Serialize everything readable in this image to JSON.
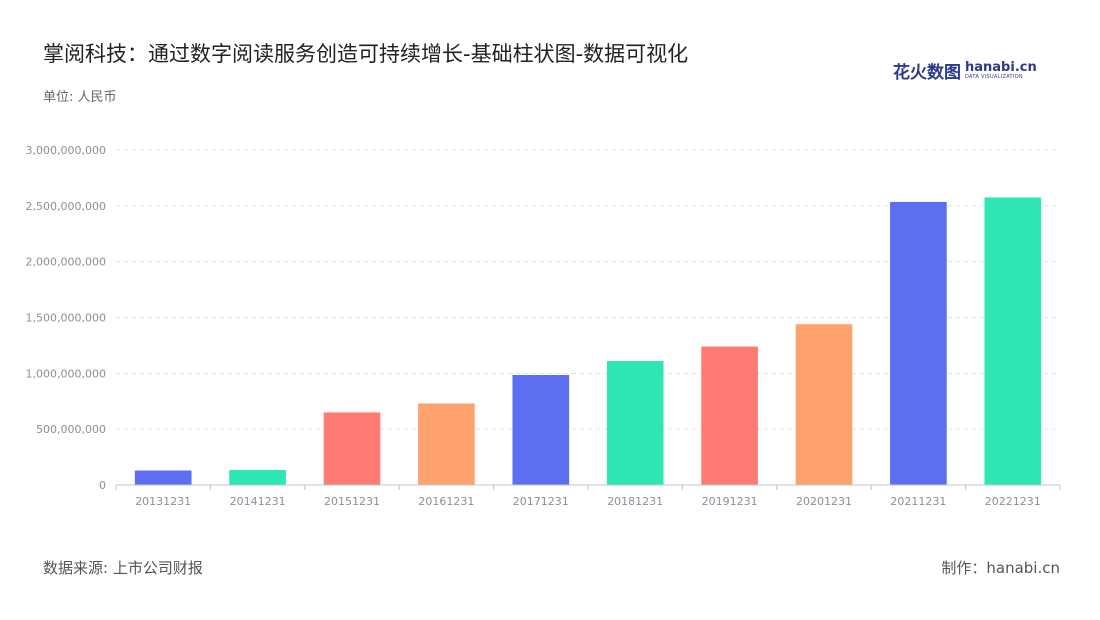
{
  "header": {
    "title": "掌阅科技：通过数字阅读服务创造可持续增长-基础柱状图-数据可视化",
    "unit": "单位: 人民币"
  },
  "logo": {
    "cn": "花火数图",
    "en": "hanabi.cn",
    "sub": "DATA VISUALIZATION"
  },
  "footer": {
    "source": "数据来源: 上市公司财报",
    "credit": "制作：hanabi.cn"
  },
  "chart_data": {
    "type": "bar",
    "categories": [
      "20131231",
      "20141231",
      "20151231",
      "20161231",
      "20171231",
      "20181231",
      "20191231",
      "20201231",
      "20211231",
      "20221231"
    ],
    "values": [
      130000000,
      135000000,
      650000000,
      730000000,
      985000000,
      1110000000,
      1240000000,
      1440000000,
      2535000000,
      2575000000
    ],
    "colors": [
      "#5b6ff0",
      "#2ee6b4",
      "#ff7a72",
      "#ffa26e",
      "#5b6ff0",
      "#2ee6b4",
      "#ff7a72",
      "#ffa26e",
      "#5b6ff0",
      "#2ee6b4"
    ],
    "ylim": [
      0,
      3000000000
    ],
    "yticks": [
      0,
      500000000,
      1000000000,
      1500000000,
      2000000000,
      2500000000,
      3000000000
    ],
    "ytick_labels": [
      "0",
      "500,000,000",
      "1,000,000,000",
      "1,500,000,000",
      "2,000,000,000",
      "2,500,000,000",
      "3,000,000,000"
    ],
    "grid": true,
    "legend": "none"
  }
}
